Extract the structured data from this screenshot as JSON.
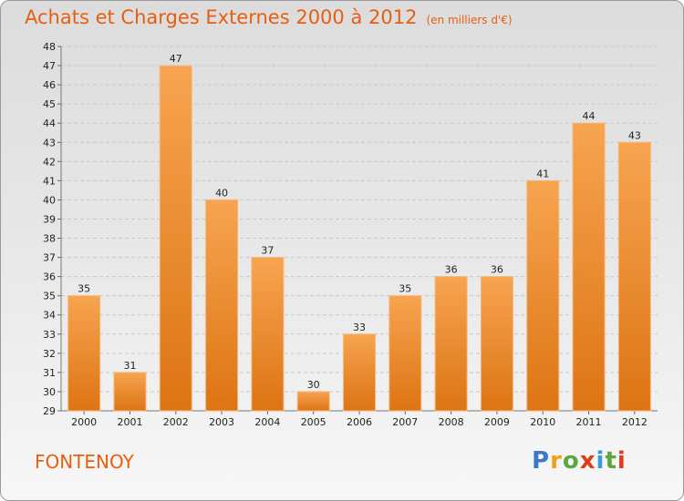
{
  "header": {
    "title": "Achats et Charges Externes 2000 à 2012",
    "subtitle": "(en milliers d'€)"
  },
  "footer": {
    "commune": "FONTENOY",
    "logo": "Proxiti"
  },
  "colors": {
    "accent": "#e85e10",
    "bar_light": "#f7a450",
    "bar_dark": "#dd7414"
  },
  "chart_data": {
    "type": "bar",
    "title": "Achats et Charges Externes 2000 à 2012",
    "subtitle": "(en milliers d'€)",
    "categories": [
      "2000",
      "2001",
      "2002",
      "2003",
      "2004",
      "2005",
      "2006",
      "2007",
      "2008",
      "2009",
      "2010",
      "2011",
      "2012"
    ],
    "values": [
      35,
      31,
      47,
      40,
      37,
      30,
      33,
      35,
      36,
      36,
      41,
      44,
      43
    ],
    "ylim": [
      29,
      48
    ],
    "yticks": [
      29,
      30,
      31,
      32,
      33,
      34,
      35,
      36,
      37,
      38,
      39,
      40,
      41,
      42,
      43,
      44,
      45,
      46,
      47,
      48
    ],
    "grid": true
  }
}
